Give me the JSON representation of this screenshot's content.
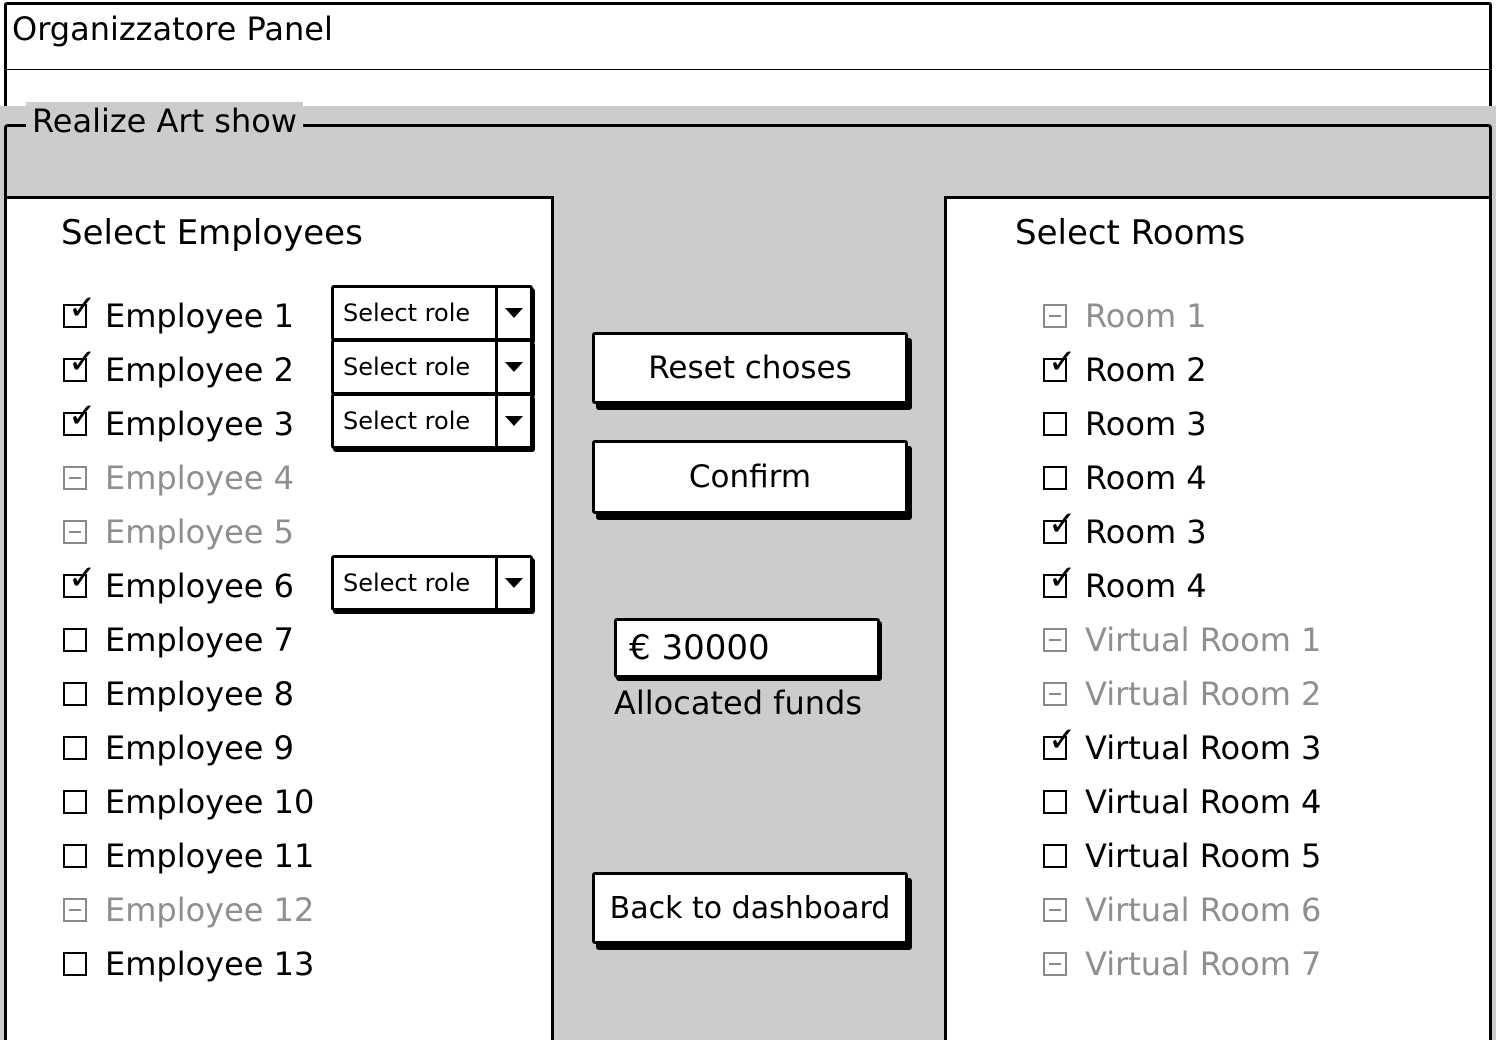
{
  "window": {
    "title": "Organizzatore Panel"
  },
  "section": {
    "legend": "Realize Art show"
  },
  "employees": {
    "title": "Select Employees",
    "items": [
      {
        "label": "Employee 1",
        "state": "checked",
        "role": "Select role"
      },
      {
        "label": "Employee 2",
        "state": "checked",
        "role": "Select role"
      },
      {
        "label": "Employee 3",
        "state": "checked",
        "role": "Select role"
      },
      {
        "label": "Employee 4",
        "state": "indeterminate",
        "role": null
      },
      {
        "label": "Employee 5",
        "state": "indeterminate",
        "role": null
      },
      {
        "label": "Employee 6",
        "state": "checked",
        "role": "Select role"
      },
      {
        "label": "Employee 7",
        "state": "unchecked",
        "role": null
      },
      {
        "label": "Employee 8",
        "state": "unchecked",
        "role": null
      },
      {
        "label": "Employee 9",
        "state": "unchecked",
        "role": null
      },
      {
        "label": "Employee 10",
        "state": "unchecked",
        "role": null
      },
      {
        "label": "Employee 11",
        "state": "unchecked",
        "role": null
      },
      {
        "label": "Employee 12",
        "state": "indeterminate",
        "role": null
      },
      {
        "label": "Employee 13",
        "state": "unchecked",
        "role": null
      }
    ]
  },
  "actions": {
    "reset_label": "Reset choses",
    "confirm_label": "Confirm",
    "back_label": "Back to dashboard"
  },
  "funds": {
    "value": "€ 30000",
    "label": "Allocated funds"
  },
  "rooms": {
    "title": "Select Rooms",
    "items": [
      {
        "label": "Room 1",
        "state": "indeterminate"
      },
      {
        "label": "Room 2",
        "state": "checked"
      },
      {
        "label": "Room 3",
        "state": "unchecked"
      },
      {
        "label": "Room 4",
        "state": "unchecked"
      },
      {
        "label": "Room 3",
        "state": "checked"
      },
      {
        "label": "Room 4",
        "state": "checked"
      },
      {
        "label": "Virtual Room 1",
        "state": "indeterminate"
      },
      {
        "label": "Virtual Room 2",
        "state": "indeterminate"
      },
      {
        "label": "Virtual Room 3",
        "state": "checked"
      },
      {
        "label": "Virtual Room 4",
        "state": "unchecked"
      },
      {
        "label": "Virtual Room 5",
        "state": "unchecked"
      },
      {
        "label": "Virtual Room 6",
        "state": "indeterminate"
      },
      {
        "label": "Virtual Room 7",
        "state": "indeterminate"
      }
    ]
  }
}
